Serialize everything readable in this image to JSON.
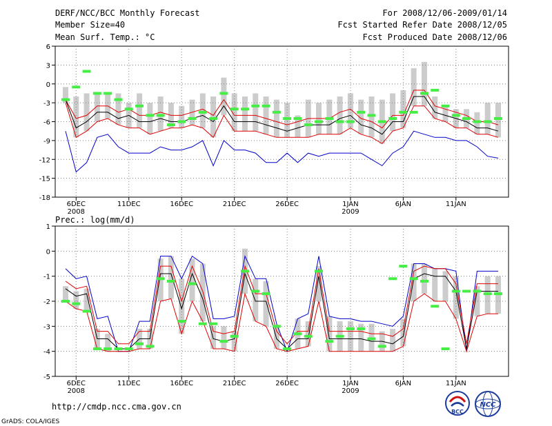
{
  "header": {
    "title": "DERF/NCC/BCC Monthly Forecast",
    "member": "Member Size=40",
    "variable": "Mean Surf. Temp.: °C",
    "period": "For 2008/12/06-2009/01/14",
    "started": "Fcst Started Refer Date 2008/12/05",
    "produced": "Fcst Produced Date 2008/12/06"
  },
  "footer": {
    "url": "http://cmdp.ncc.cma.gov.cn",
    "grads": "GrADS: COLA/IGES",
    "logo_bcc": "BCC",
    "logo_ncc": "NCC"
  },
  "colors": {
    "upper": "#0000cc",
    "lower": "#e00000",
    "mean": "#000000",
    "obs": "#44ee44",
    "bar": "#cccccc",
    "grid": "#808080"
  },
  "chart_data": [
    {
      "type": "line",
      "title": "Mean Surf. Temp.: °C",
      "ylim": [
        -18,
        6
      ],
      "yticks": [
        "6",
        "3",
        "0",
        "-3",
        "-6",
        "-9",
        "-12",
        "-15",
        "-18"
      ],
      "xlabels": [
        {
          "day": 1,
          "label": "6DEC",
          "sub": "2008"
        },
        {
          "day": 6,
          "label": "11DEC",
          "sub": ""
        },
        {
          "day": 11,
          "label": "16DEC",
          "sub": ""
        },
        {
          "day": 16,
          "label": "21DEC",
          "sub": ""
        },
        {
          "day": 21,
          "label": "26DEC",
          "sub": ""
        },
        {
          "day": 27,
          "label": "1JAN",
          "sub": "2009"
        },
        {
          "day": 32,
          "label": "6JAN",
          "sub": ""
        },
        {
          "day": 37,
          "label": "11JAN",
          "sub": ""
        }
      ],
      "days": 40,
      "series": [
        {
          "name": "upper",
          "values": [
            -7.5,
            -14,
            -12.5,
            -8.5,
            -8,
            -10,
            -11,
            -11,
            -11,
            -10,
            -10.5,
            -10.5,
            -10,
            -9,
            -13,
            -9,
            -10.5,
            -10.5,
            -11,
            -12.5,
            -12.5,
            -11,
            -12.5,
            -11,
            -11.5,
            -11,
            -11,
            -11,
            -11,
            -12,
            -13,
            -11,
            -10,
            -7.5,
            -8,
            -8.5,
            -8.5,
            -9,
            -9,
            -10,
            -11.5,
            -11.8
          ]
        },
        {
          "name": "lower",
          "values": [
            -3,
            -8.5,
            -7.5,
            -6,
            -5.5,
            -6.5,
            -7,
            -7,
            -8,
            -7.5,
            -7,
            -7,
            -6.5,
            -7,
            -8.5,
            -5,
            -7.5,
            -7.5,
            -7.5,
            -8,
            -8.5,
            -8.5,
            -8.5,
            -8.5,
            -8,
            -8,
            -8,
            -7,
            -8,
            -8.5,
            -9.5,
            -7.5,
            -7,
            -3.5,
            -3.5,
            -5.5,
            -6,
            -7,
            -7,
            -8,
            -8,
            -8.5
          ]
        },
        {
          "name": "mean",
          "values": [
            -2.5,
            -7,
            -6,
            -4.5,
            -4.5,
            -5.5,
            -5,
            -6,
            -6,
            -5.5,
            -6,
            -6,
            -5.5,
            -5,
            -6,
            -3.5,
            -6,
            -6,
            -6,
            -6.5,
            -7,
            -7.5,
            -7,
            -6.5,
            -6.5,
            -6.5,
            -5.5,
            -5,
            -6.5,
            -7,
            -8,
            -6,
            -6,
            -2,
            -2,
            -4.5,
            -5,
            -5.5,
            -6,
            -7,
            -7,
            -7.5
          ]
        },
        {
          "name": "middle",
          "values": [
            -2.5,
            -5.5,
            -5,
            -3.5,
            -3.5,
            -4.5,
            -4,
            -5,
            -5,
            -4.5,
            -5,
            -5,
            -4.5,
            -4,
            -5,
            -2.5,
            -5,
            -5,
            -5,
            -5.5,
            -6,
            -6.5,
            -6,
            -5.5,
            -5.5,
            -5.5,
            -4.5,
            -4,
            -5.5,
            -6,
            -7,
            -5,
            -5,
            -1,
            -1,
            -3.5,
            -4,
            -4.5,
            -5,
            -6,
            -6,
            -6.5
          ]
        },
        {
          "name": "top",
          "values": [
            -0.5,
            -2,
            -1.5,
            -1.5,
            -1.5,
            -1.5,
            -3,
            -1.5,
            -3,
            -2,
            -3,
            -3.5,
            -2.5,
            -1.5,
            -2,
            1,
            -1.5,
            -2,
            -1.5,
            -2,
            -2.5,
            -3,
            -5,
            -2.5,
            -3,
            -2.5,
            -2,
            -1.5,
            -2.5,
            -2,
            -2.5,
            -1.5,
            -1,
            2.5,
            3.5,
            -2,
            -3.5,
            -4,
            -4,
            -4.5,
            -3,
            -3
          ]
        },
        {
          "name": "observed",
          "values": [
            -2.5,
            -0.5,
            2,
            -1.5,
            -1.5,
            -2.5,
            -4,
            -3.5,
            -5,
            -5,
            -6.5,
            -6,
            -5.5,
            -4.5,
            -5.5,
            -1.5,
            -4,
            -4,
            -3.5,
            -3.5,
            -4.5,
            -5.5,
            -5.5,
            -6.5,
            -6,
            -5.5,
            -6,
            -6,
            -4.5,
            -5,
            -6,
            -5.5,
            -4.5,
            -4.5,
            -1.5,
            -1,
            -3.5,
            -5,
            -5.5,
            -6,
            -6,
            -5.5
          ]
        }
      ]
    },
    {
      "type": "line",
      "title": "Prec.: log(mm/d)",
      "ylim": [
        -5,
        1
      ],
      "yticks": [
        "1",
        "0",
        "-1",
        "-2",
        "-3",
        "-4",
        "-5"
      ],
      "xlabels": [
        {
          "day": 1,
          "label": "6DEC",
          "sub": "2008"
        },
        {
          "day": 6,
          "label": "11DEC",
          "sub": ""
        },
        {
          "day": 11,
          "label": "16DEC",
          "sub": ""
        },
        {
          "day": 16,
          "label": "21DEC",
          "sub": ""
        },
        {
          "day": 21,
          "label": "26DEC",
          "sub": ""
        },
        {
          "day": 27,
          "label": "1JAN",
          "sub": "2009"
        },
        {
          "day": 32,
          "label": "6JAN",
          "sub": ""
        },
        {
          "day": 37,
          "label": "11JAN",
          "sub": ""
        }
      ],
      "days": 40,
      "series": [
        {
          "name": "upper",
          "values": [
            -0.7,
            -1.1,
            -1,
            -2.7,
            -2.6,
            -4,
            -4,
            -2.8,
            -2.8,
            -0.2,
            -0.2,
            -1.1,
            -0.2,
            -0.5,
            -2.7,
            -2.7,
            -2.6,
            -0.2,
            -1.1,
            -1.1,
            -2.9,
            -4,
            -2.7,
            -2.5,
            -0.2,
            -2.6,
            -2.7,
            -2.7,
            -2.8,
            -2.8,
            -2.9,
            -3,
            -2.6,
            -0.5,
            -0.5,
            -0.7,
            -0.7,
            -0.8,
            -4,
            -0.8,
            -0.8,
            -0.8
          ]
        },
        {
          "name": "lower",
          "values": [
            -2,
            -2.3,
            -2.4,
            -3.9,
            -4,
            -4,
            -4,
            -3.9,
            -3.9,
            -2,
            -1.9,
            -3.3,
            -2,
            -2.8,
            -3.9,
            -3.9,
            -4,
            -1.7,
            -2.8,
            -3,
            -3.9,
            -4,
            -3.9,
            -3.8,
            -2,
            -4,
            -4,
            -4,
            -4,
            -4,
            -4,
            -4,
            -3.8,
            -2,
            -1.7,
            -2,
            -2,
            -2.7,
            -4,
            -2.6,
            -2.5,
            -2.5
          ]
        },
        {
          "name": "mean",
          "values": [
            -1.5,
            -1.8,
            -1.7,
            -3.5,
            -3.5,
            -3.9,
            -3.9,
            -3.5,
            -3.5,
            -0.9,
            -0.9,
            -2.3,
            -0.9,
            -1.9,
            -3.5,
            -3.6,
            -3.5,
            -0.9,
            -2,
            -2,
            -3.5,
            -3.9,
            -3.5,
            -3.5,
            -1,
            -3.5,
            -3.5,
            -3.5,
            -3.5,
            -3.6,
            -3.6,
            -3.7,
            -3.4,
            -1.1,
            -0.9,
            -1,
            -1,
            -1.6,
            -3.9,
            -1.6,
            -1.6,
            -1.6
          ]
        },
        {
          "name": "middle",
          "values": [
            -1.2,
            -1.5,
            -1.4,
            -3.2,
            -3.2,
            -3.7,
            -3.7,
            -3.2,
            -3.2,
            -0.6,
            -0.6,
            -2,
            -0.6,
            -1.6,
            -3.2,
            -3.3,
            -3.2,
            -0.6,
            -1.7,
            -1.7,
            -3.2,
            -3.7,
            -3.2,
            -3.2,
            -0.7,
            -3.2,
            -3.2,
            -3.2,
            -3.2,
            -3.3,
            -3.3,
            -3.4,
            -3.1,
            -0.8,
            -0.6,
            -0.7,
            -0.7,
            -1.3,
            -3.7,
            -1.3,
            -1.3,
            -1.3
          ]
        },
        {
          "name": "top",
          "values": [
            -1.4,
            -1.6,
            -1.5,
            -3.1,
            -3.3,
            -4,
            -4,
            -3.1,
            -3.1,
            -0.3,
            -0.2,
            -1.1,
            -0.3,
            -0.5,
            -3,
            -3,
            -3.2,
            0.1,
            -1.1,
            -1.2,
            -3,
            -4,
            -2.7,
            -2.8,
            -0.6,
            -2.6,
            -2.8,
            -2.8,
            -2.9,
            -2.9,
            -3.2,
            -3.1,
            -2.7,
            -0.5,
            -0.5,
            -0.7,
            -0.8,
            -1,
            -4,
            -1.4,
            -1,
            -1
          ]
        },
        {
          "name": "observed",
          "values": [
            -2,
            -2.1,
            -2.4,
            -3.9,
            -3.9,
            -3.9,
            -3.9,
            -3.7,
            -3.8,
            -1.1,
            -1.2,
            -2.8,
            -1.3,
            -2.9,
            -2.9,
            -3.6,
            -3.4,
            -0.8,
            -1.6,
            -1.7,
            -3,
            -3.9,
            -3.3,
            -3.4,
            -0.8,
            -3.6,
            -3.4,
            -3.1,
            -3.1,
            -3.5,
            -3.8,
            -1.1,
            -0.6,
            -1.1,
            -1.2,
            -2.2,
            -3.9,
            -1.6,
            -1.6,
            -1.6,
            -1.7,
            -1.7
          ]
        }
      ]
    }
  ]
}
